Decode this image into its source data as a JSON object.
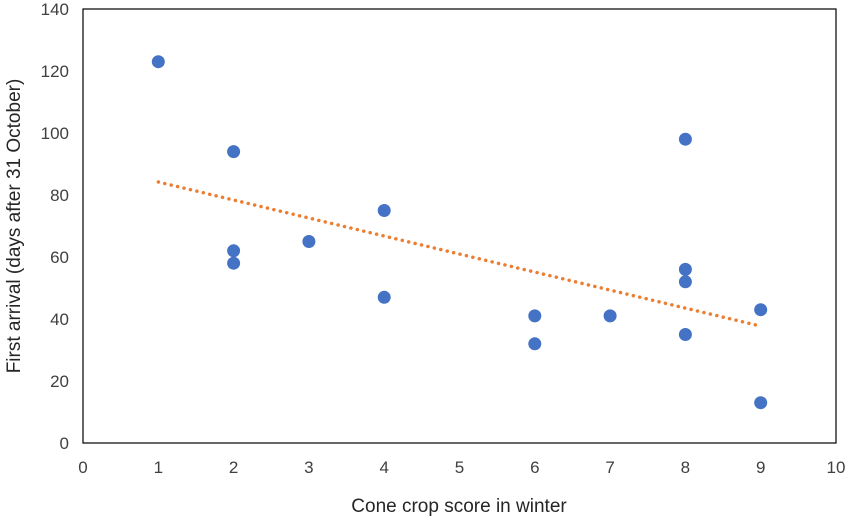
{
  "chart_data": {
    "type": "scatter",
    "xlabel": "Cone crop score in winter",
    "ylabel": "First arrival (days after 31 October)",
    "xlim": [
      0,
      10
    ],
    "ylim": [
      0,
      140
    ],
    "xticks": [
      0,
      1,
      2,
      3,
      4,
      5,
      6,
      7,
      8,
      9,
      10
    ],
    "yticks": [
      0,
      20,
      40,
      60,
      80,
      100,
      120,
      140
    ],
    "grid": false,
    "legend": "none",
    "series": [
      {
        "x": [
          1,
          2,
          2,
          2,
          3,
          4,
          4,
          6,
          6,
          7,
          8,
          8,
          8,
          8,
          9,
          9
        ],
        "y": [
          123,
          94,
          62,
          58,
          65,
          75,
          47,
          41,
          32,
          41,
          98,
          56,
          52,
          35,
          43,
          13
        ],
        "color": "#4472C4"
      }
    ],
    "trendline": {
      "type": "linear",
      "style": "dotted",
      "color": "#ED7D31",
      "x": [
        1,
        9
      ],
      "y": [
        84.2,
        37.7
      ]
    }
  }
}
